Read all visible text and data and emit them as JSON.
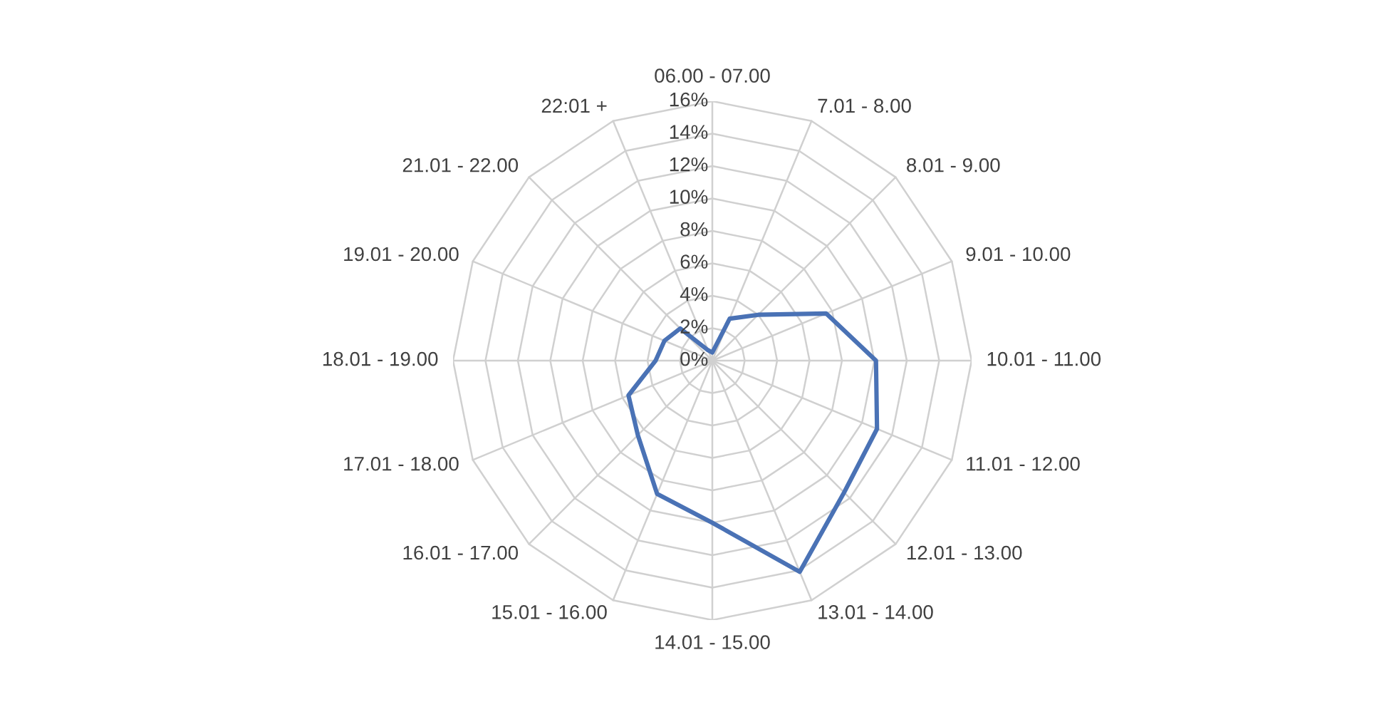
{
  "chart_data": {
    "type": "radar",
    "categories": [
      "06.00 - 07.00",
      "7.01 - 8.00",
      "8.01 - 9.00",
      "9.01 - 10.00",
      "10.01 - 11.00",
      "11.01 - 12.00",
      "12.01 - 13.00",
      "13.01 - 14.00",
      "14.01 - 15.00",
      "15.01 - 16.00",
      "16.01 - 17.00",
      "17.01 - 18.00",
      "18.01 - 19.00",
      "19.01 - 20.00",
      "21.01 - 22.00",
      "22:01 +"
    ],
    "series": [
      {
        "color": "#4a72b5",
        "values": [
          0.5,
          2.8,
          4.0,
          7.6,
          10.1,
          11.0,
          11.5,
          14.1,
          10.0,
          8.9,
          6.5,
          5.6,
          3.5,
          3.2,
          2.8,
          0.7
        ]
      }
    ],
    "ylim": [
      0,
      16
    ],
    "yticks": [
      {
        "value": 0,
        "label": "0%"
      },
      {
        "value": 2,
        "label": "2%"
      },
      {
        "value": 4,
        "label": "4%"
      },
      {
        "value": 6,
        "label": "6%"
      },
      {
        "value": 8,
        "label": "8%"
      },
      {
        "value": 10,
        "label": "10%"
      },
      {
        "value": 12,
        "label": "12%"
      },
      {
        "value": 14,
        "label": "14%"
      },
      {
        "value": 16,
        "label": "16%"
      }
    ],
    "grid": true,
    "marker": "none",
    "line_style": "solid"
  }
}
